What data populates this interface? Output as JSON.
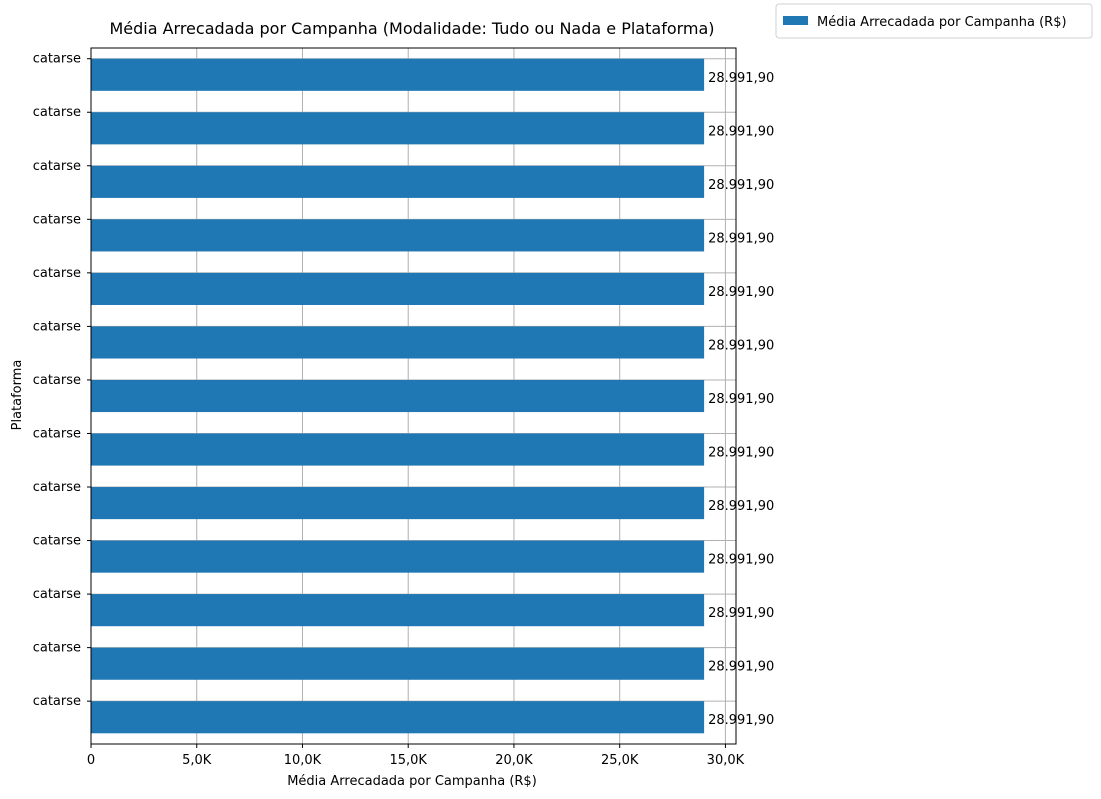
{
  "chart_data": {
    "type": "bar",
    "orientation": "horizontal",
    "title": "Média Arrecadada por Campanha (Modalidade: Tudo ou Nada e Plataforma)",
    "xlabel": "Média Arrecadada por Campanha (R$)",
    "ylabel": "Plataforma",
    "categories": [
      "catarse",
      "catarse",
      "catarse",
      "catarse",
      "catarse",
      "catarse",
      "catarse",
      "catarse",
      "catarse",
      "catarse",
      "catarse",
      "catarse",
      "catarse"
    ],
    "series": [
      {
        "name": "Média Arrecadada por Campanha (R$)",
        "values": [
          28991.9,
          28991.9,
          28991.9,
          28991.9,
          28991.9,
          28991.9,
          28991.9,
          28991.9,
          28991.9,
          28991.9,
          28991.9,
          28991.9,
          28991.9
        ],
        "data_labels": [
          "28.991,90",
          "28.991,90",
          "28.991,90",
          "28.991,90",
          "28.991,90",
          "28.991,90",
          "28.991,90",
          "28.991,90",
          "28.991,90",
          "28.991,90",
          "28.991,90",
          "28.991,90",
          "28.991,90"
        ],
        "color": "#1f77b4"
      }
    ],
    "xticks": [
      0,
      5000,
      10000,
      15000,
      20000,
      25000,
      30000
    ],
    "xtick_labels": [
      "0",
      "5,0K",
      "10,0K",
      "15,0K",
      "20,0K",
      "25,0K",
      "30,0K"
    ],
    "xlim": [
      0,
      30500
    ],
    "grid": true,
    "legend": "outside-top-right"
  }
}
